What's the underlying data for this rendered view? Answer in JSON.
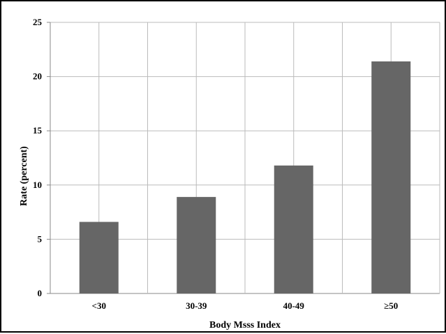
{
  "chart_data": {
    "type": "bar",
    "categories": [
      "<30",
      "30-39",
      "40-49",
      "≥50"
    ],
    "values": [
      6.6,
      8.9,
      11.8,
      21.4
    ],
    "title": "",
    "xlabel": "Body Msss Index",
    "ylabel": "Rate (percent)",
    "ylim": [
      0,
      25
    ],
    "yticks": [
      "0",
      "5",
      "10",
      "15",
      "20",
      "25"
    ],
    "grid": true,
    "colors": {
      "bar": "#666666",
      "grid": "#bbbbbb",
      "axis": "#888888"
    }
  }
}
